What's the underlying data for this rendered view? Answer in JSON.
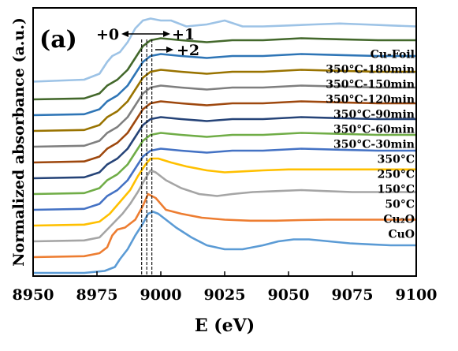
{
  "panel_label": "(a)",
  "chart_data": {
    "type": "line",
    "xlabel": "E (eV)",
    "ylabel": "Normalized absorbance (a.u.)",
    "xlim": [
      8950,
      9100
    ],
    "xticks": [
      8950,
      8975,
      9000,
      9025,
      9050,
      9075,
      9100
    ],
    "ytick_labels": false,
    "grid": false,
    "legend": "inline labels at right of curves",
    "reference_lines": [
      8992.5,
      8994.5,
      8996.5
    ],
    "annotations": {
      "ox0": "+0",
      "ox1": "+1",
      "ox2": "+2"
    },
    "series": [
      {
        "name": "CuO",
        "color": "#5b9bd5",
        "label_y": 0.1,
        "x": [
          8950,
          8970,
          8978,
          8982,
          8984,
          8987,
          8990,
          8993,
          8995,
          8997,
          8999,
          9002,
          9006,
          9012,
          9018,
          9025,
          9032,
          9040,
          9046,
          9052,
          9058,
          9066,
          9074,
          9082,
          9090,
          9100
        ],
        "y": [
          0.0,
          0.0,
          0.01,
          0.03,
          0.07,
          0.12,
          0.19,
          0.25,
          0.3,
          0.31,
          0.3,
          0.27,
          0.23,
          0.18,
          0.14,
          0.12,
          0.12,
          0.14,
          0.16,
          0.17,
          0.17,
          0.16,
          0.15,
          0.145,
          0.14,
          0.14
        ]
      },
      {
        "name": "Cu₂O",
        "color": "#ed7d31",
        "label_y": 0.18,
        "x": [
          8950,
          8970,
          8976,
          8979,
          8981,
          8983,
          8986,
          8990,
          8993,
          8995,
          8998,
          9002,
          9008,
          9016,
          9025,
          9035,
          9045,
          9055,
          9065,
          9075,
          9085,
          9100
        ],
        "y": [
          0.0,
          0.005,
          0.02,
          0.05,
          0.11,
          0.14,
          0.15,
          0.19,
          0.26,
          0.32,
          0.3,
          0.24,
          0.22,
          0.2,
          0.19,
          0.185,
          0.185,
          0.188,
          0.19,
          0.19,
          0.19,
          0.19
        ]
      },
      {
        "name": "50°C",
        "color": "#a5a5a5",
        "label_y": 0.26,
        "x": [
          8950,
          8970,
          8976,
          8979,
          8982,
          8985,
          8988,
          8991,
          8994,
          8996,
          8998,
          9002,
          9008,
          9015,
          9022,
          9028,
          9036,
          9045,
          9055,
          9065,
          9075,
          9085,
          9100
        ],
        "y": [
          0.0,
          0.005,
          0.02,
          0.06,
          0.1,
          0.14,
          0.19,
          0.25,
          0.32,
          0.36,
          0.35,
          0.31,
          0.27,
          0.24,
          0.23,
          0.24,
          0.25,
          0.255,
          0.26,
          0.255,
          0.25,
          0.25,
          0.25
        ]
      },
      {
        "name": "150°C",
        "color": "#ffc000",
        "label_y": 0.34,
        "x": [
          8950,
          8970,
          8976,
          8980,
          8984,
          8988,
          8991,
          8994,
          8996,
          8999,
          9004,
          9010,
          9018,
          9025,
          9032,
          9040,
          9050,
          9060,
          9070,
          9080,
          9090,
          9100
        ],
        "y": [
          0.0,
          0.005,
          0.02,
          0.06,
          0.12,
          0.18,
          0.25,
          0.31,
          0.34,
          0.34,
          0.32,
          0.3,
          0.28,
          0.27,
          0.275,
          0.28,
          0.285,
          0.285,
          0.285,
          0.285,
          0.285,
          0.285
        ]
      },
      {
        "name": "250°C",
        "color": "#4472c4",
        "label_y": 0.42,
        "x": [
          8950,
          8970,
          8976,
          8979,
          8983,
          8987,
          8990,
          8993,
          8996,
          9000,
          9008,
          9018,
          9028,
          9040,
          9055,
          9070,
          9085,
          9100
        ],
        "y": [
          0.0,
          0.005,
          0.03,
          0.07,
          0.1,
          0.15,
          0.21,
          0.27,
          0.3,
          0.31,
          0.3,
          0.29,
          0.3,
          0.3,
          0.31,
          0.305,
          0.3,
          0.3
        ]
      },
      {
        "name": "350°C",
        "color": "#70ad47",
        "label_y": 0.5,
        "x": [
          8950,
          8970,
          8976,
          8979,
          8983,
          8987,
          8990,
          8993,
          8996,
          9000,
          9008,
          9018,
          9028,
          9040,
          9055,
          9070,
          9085,
          9100
        ],
        "y": [
          0.0,
          0.005,
          0.03,
          0.07,
          0.1,
          0.15,
          0.21,
          0.27,
          0.3,
          0.31,
          0.3,
          0.29,
          0.3,
          0.3,
          0.31,
          0.305,
          0.3,
          0.3
        ]
      },
      {
        "name": "350°C-30min",
        "color": "#264478",
        "label_y": 0.58,
        "x": [
          8950,
          8970,
          8976,
          8979,
          8983,
          8987,
          8990,
          8993,
          8996,
          9000,
          9008,
          9018,
          9028,
          9040,
          9055,
          9070,
          9085,
          9100
        ],
        "y": [
          0.0,
          0.005,
          0.03,
          0.07,
          0.1,
          0.15,
          0.21,
          0.27,
          0.3,
          0.31,
          0.3,
          0.29,
          0.3,
          0.3,
          0.31,
          0.305,
          0.3,
          0.3
        ]
      },
      {
        "name": "350°C-60min",
        "color": "#9e480e",
        "label_y": 0.66,
        "x": [
          8950,
          8970,
          8976,
          8979,
          8983,
          8987,
          8990,
          8993,
          8996,
          9000,
          9008,
          9018,
          9028,
          9040,
          9055,
          9070,
          9085,
          9100
        ],
        "y": [
          0.0,
          0.005,
          0.03,
          0.07,
          0.1,
          0.15,
          0.21,
          0.27,
          0.3,
          0.31,
          0.3,
          0.29,
          0.3,
          0.3,
          0.31,
          0.305,
          0.3,
          0.3
        ]
      },
      {
        "name": "350°C-90min",
        "color": "#7f7f7f",
        "label_y": 0.74,
        "x": [
          8950,
          8970,
          8976,
          8979,
          8983,
          8987,
          8990,
          8993,
          8996,
          9000,
          9008,
          9018,
          9028,
          9040,
          9055,
          9070,
          9085,
          9100
        ],
        "y": [
          0.0,
          0.005,
          0.03,
          0.07,
          0.1,
          0.15,
          0.21,
          0.27,
          0.3,
          0.31,
          0.3,
          0.29,
          0.3,
          0.3,
          0.31,
          0.305,
          0.3,
          0.3
        ]
      },
      {
        "name": "350°C-120min",
        "color": "#997300",
        "label_y": 0.82,
        "x": [
          8950,
          8970,
          8976,
          8979,
          8983,
          8987,
          8990,
          8993,
          8996,
          9000,
          9008,
          9018,
          9028,
          9040,
          9055,
          9070,
          9085,
          9100
        ],
        "y": [
          0.0,
          0.005,
          0.03,
          0.07,
          0.1,
          0.15,
          0.21,
          0.27,
          0.3,
          0.31,
          0.3,
          0.29,
          0.3,
          0.3,
          0.31,
          0.305,
          0.3,
          0.3
        ]
      },
      {
        "name": "350°C-150min",
        "color": "#2e75b6",
        "label_y": 0.9,
        "x": [
          8950,
          8970,
          8976,
          8979,
          8983,
          8987,
          8990,
          8993,
          8996,
          9000,
          9008,
          9018,
          9028,
          9040,
          9055,
          9070,
          9085,
          9100
        ],
        "y": [
          0.0,
          0.005,
          0.03,
          0.07,
          0.1,
          0.15,
          0.21,
          0.27,
          0.3,
          0.31,
          0.3,
          0.29,
          0.3,
          0.3,
          0.31,
          0.305,
          0.3,
          0.3
        ]
      },
      {
        "name": "350°C-180min",
        "color": "#43682b",
        "label_y": 0.98,
        "x": [
          8950,
          8970,
          8976,
          8979,
          8983,
          8987,
          8990,
          8993,
          8996,
          9000,
          9008,
          9018,
          9028,
          9040,
          9055,
          9070,
          9085,
          9100
        ],
        "y": [
          0.0,
          0.005,
          0.03,
          0.07,
          0.1,
          0.15,
          0.21,
          0.27,
          0.3,
          0.31,
          0.3,
          0.29,
          0.3,
          0.3,
          0.31,
          0.305,
          0.3,
          0.3
        ]
      },
      {
        "name": "Cu-Foil",
        "color": "#9dc3e6",
        "label_y": 1.06,
        "x": [
          8950,
          8970,
          8976,
          8979,
          8981,
          8984,
          8987,
          8990,
          8993,
          8996,
          9000,
          9004,
          9010,
          9018,
          9025,
          9032,
          9040,
          9050,
          9060,
          9070,
          9080,
          9090,
          9100
        ],
        "y": [
          0.0,
          0.01,
          0.04,
          0.1,
          0.13,
          0.15,
          0.2,
          0.27,
          0.31,
          0.32,
          0.31,
          0.31,
          0.28,
          0.29,
          0.31,
          0.28,
          0.28,
          0.285,
          0.29,
          0.295,
          0.29,
          0.285,
          0.28
        ]
      }
    ],
    "offsets": [
      0.0,
      0.08,
      0.16,
      0.24,
      0.32,
      0.4,
      0.48,
      0.56,
      0.64,
      0.72,
      0.8,
      0.88,
      0.97
    ]
  }
}
